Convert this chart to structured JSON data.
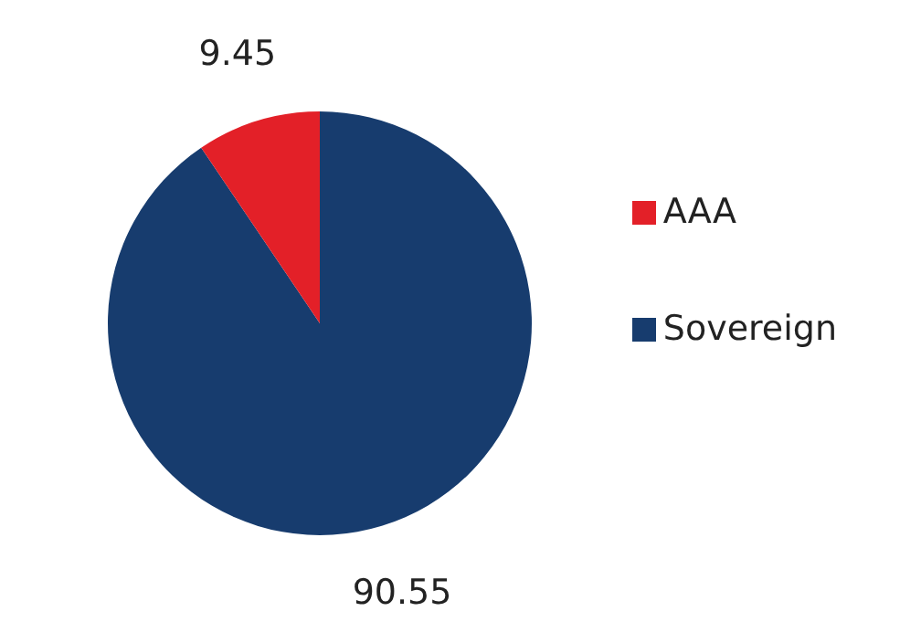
{
  "chart_data": {
    "type": "pie",
    "categories": [
      "Sovereign",
      "AAA"
    ],
    "values": [
      90.55,
      9.45
    ],
    "colors": [
      "#173c6e",
      "#e32028"
    ],
    "data_labels": true,
    "legend": "right"
  }
}
